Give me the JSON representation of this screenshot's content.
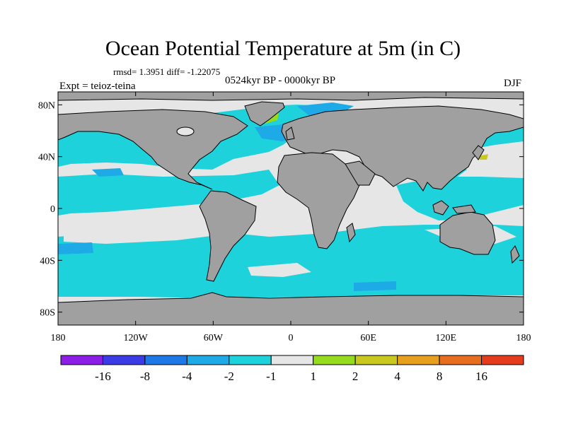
{
  "chart_data": {
    "type": "heatmap",
    "title": "Ocean Potential Temperature at 5m (in C)",
    "stats_label": "rmsd= 1.3951 diff= -1.22075",
    "experiment_label": "Expt = teioz-teina",
    "period_label": "0524kyr BP - 0000kyr BP",
    "season_label": "DJF",
    "x_ticks": [
      "180",
      "120W",
      "60W",
      "0",
      "60E",
      "120E",
      "180"
    ],
    "x_values": [
      -180,
      -120,
      -60,
      0,
      60,
      120,
      180
    ],
    "y_ticks": [
      "80N",
      "40N",
      "0",
      "40S",
      "80S"
    ],
    "y_values": [
      80,
      40,
      0,
      -40,
      -80
    ],
    "xlim": [
      -180,
      180
    ],
    "ylim": [
      -90,
      90
    ],
    "colorbar": {
      "levels": [
        "-16",
        "-8",
        "-4",
        "-2",
        "-1",
        "1",
        "2",
        "4",
        "8",
        "16"
      ],
      "colors": [
        "#8c1ee6",
        "#3c3ce6",
        "#1e78e6",
        "#1eaae6",
        "#1ed2dc",
        "#e6e6e6",
        "#96dc1e",
        "#c8c81e",
        "#e6a01e",
        "#e66e1e",
        "#e63c1e"
      ]
    },
    "land_color": "#a0a0a0"
  }
}
